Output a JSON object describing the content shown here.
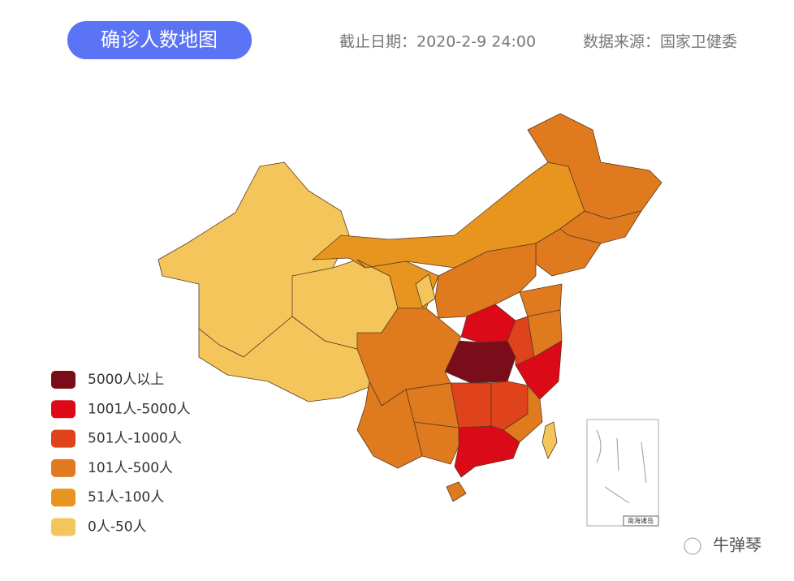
{
  "header": {
    "title": "确诊人数地图",
    "date": "截止日期：2020-2-9 24:00",
    "source": "数据来源：国家卫健委"
  },
  "legend": [
    {
      "label": "5000人以上",
      "color": "#7b0d1a"
    },
    {
      "label": "1001人-5000人",
      "color": "#dc0a18"
    },
    {
      "label": "501人-1000人",
      "color": "#e0421c"
    },
    {
      "label": "101人-500人",
      "color": "#e07a1f"
    },
    {
      "label": "51人-100人",
      "color": "#e8951f"
    },
    {
      "label": "0人-50人",
      "color": "#f4c55b"
    }
  ],
  "inset_label": "南海诸岛",
  "watermark": "牛弹琴"
}
